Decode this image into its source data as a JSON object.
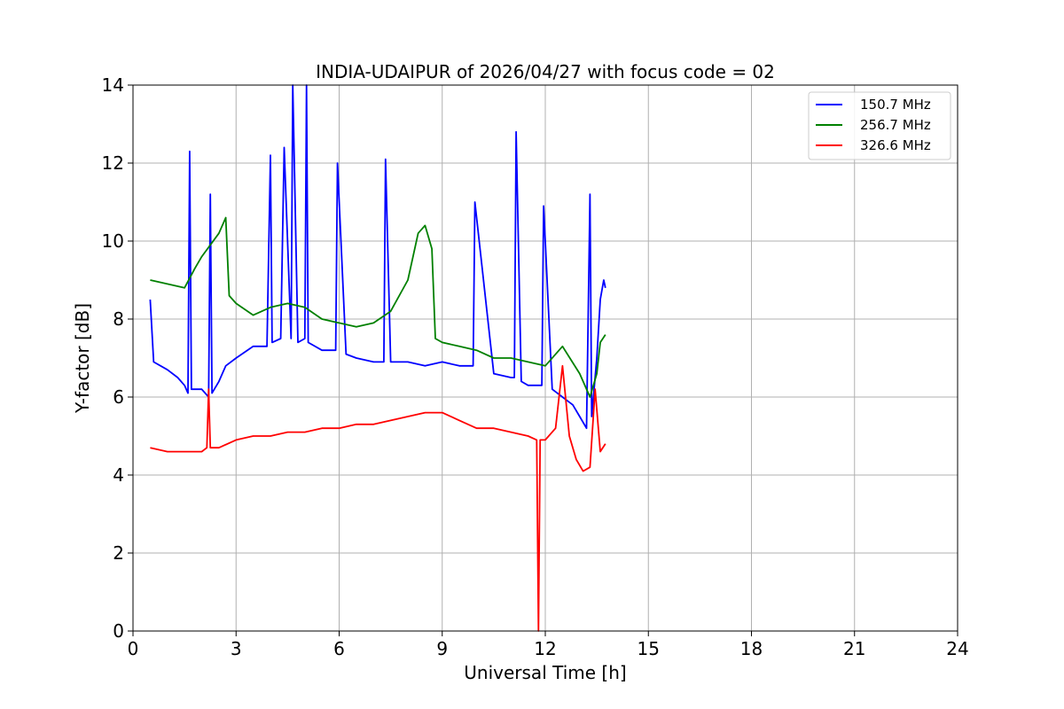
{
  "chart_data": {
    "type": "line",
    "title": "INDIA-UDAIPUR of 2026/04/27 with focus code = 02",
    "xlabel": "Universal Time [h]",
    "ylabel": "Y-factor [dB]",
    "xlim": [
      0,
      24
    ],
    "ylim": [
      0,
      14
    ],
    "xticks": [
      0,
      3,
      6,
      9,
      12,
      15,
      18,
      21,
      24
    ],
    "yticks": [
      0,
      2,
      4,
      6,
      8,
      10,
      12,
      14
    ],
    "grid": true,
    "legend_position": "upper right",
    "series": [
      {
        "name": "150.7 MHz",
        "color": "#0000ff",
        "x": [
          0.5,
          0.6,
          1.0,
          1.3,
          1.5,
          1.6,
          1.65,
          1.7,
          2.0,
          2.2,
          2.25,
          2.3,
          2.5,
          2.7,
          3.0,
          3.5,
          3.9,
          4.0,
          4.05,
          4.3,
          4.4,
          4.6,
          4.65,
          4.8,
          5.0,
          5.05,
          5.1,
          5.5,
          5.9,
          5.95,
          6.2,
          6.5,
          7.0,
          7.3,
          7.35,
          7.5,
          8.0,
          8.5,
          9.0,
          9.5,
          9.9,
          9.95,
          10.5,
          11.0,
          11.1,
          11.15,
          11.3,
          11.5,
          11.9,
          11.95,
          12.2,
          12.5,
          12.8,
          13.0,
          13.2,
          13.3,
          13.35,
          13.5,
          13.6,
          13.7,
          13.75
        ],
        "values": [
          8.5,
          6.9,
          6.7,
          6.5,
          6.3,
          6.1,
          12.3,
          6.2,
          6.2,
          6.0,
          11.2,
          6.1,
          6.4,
          6.8,
          7.0,
          7.3,
          7.3,
          12.2,
          7.4,
          7.5,
          12.4,
          7.5,
          14.0,
          7.4,
          7.5,
          14.0,
          7.4,
          7.2,
          7.2,
          12.0,
          7.1,
          7.0,
          6.9,
          6.9,
          12.1,
          6.9,
          6.9,
          6.8,
          6.9,
          6.8,
          6.8,
          11.0,
          6.6,
          6.5,
          6.5,
          12.8,
          6.4,
          6.3,
          6.3,
          10.9,
          6.2,
          6.0,
          5.8,
          5.5,
          5.2,
          11.2,
          5.5,
          7.0,
          8.5,
          9.0,
          8.8
        ]
      },
      {
        "name": "256.7 MHz",
        "color": "#008000",
        "x": [
          0.5,
          1.0,
          1.5,
          1.8,
          2.0,
          2.5,
          2.7,
          2.8,
          3.0,
          3.5,
          4.0,
          4.5,
          5.0,
          5.5,
          6.0,
          6.5,
          7.0,
          7.5,
          8.0,
          8.3,
          8.5,
          8.7,
          8.8,
          9.0,
          9.5,
          10.0,
          10.5,
          11.0,
          11.5,
          12.0,
          12.5,
          13.0,
          13.3,
          13.5,
          13.6,
          13.75
        ],
        "values": [
          9.0,
          8.9,
          8.8,
          9.3,
          9.6,
          10.2,
          10.6,
          8.6,
          8.4,
          8.1,
          8.3,
          8.4,
          8.3,
          8.0,
          7.9,
          7.8,
          7.9,
          8.2,
          9.0,
          10.2,
          10.4,
          9.8,
          7.5,
          7.4,
          7.3,
          7.2,
          7.0,
          7.0,
          6.9,
          6.8,
          7.3,
          6.6,
          6.0,
          6.6,
          7.4,
          7.6
        ]
      },
      {
        "name": "326.6 MHz",
        "color": "#ff0000",
        "x": [
          0.5,
          1.0,
          1.5,
          2.0,
          2.15,
          2.2,
          2.25,
          2.5,
          3.0,
          3.5,
          4.0,
          4.5,
          5.0,
          5.5,
          6.0,
          6.5,
          7.0,
          7.5,
          8.0,
          8.5,
          9.0,
          9.5,
          10.0,
          10.5,
          11.0,
          11.5,
          11.75,
          11.8,
          11.85,
          12.0,
          12.3,
          12.5,
          12.7,
          12.9,
          13.1,
          13.3,
          13.45,
          13.6,
          13.75
        ],
        "values": [
          4.7,
          4.6,
          4.6,
          4.6,
          4.7,
          6.2,
          4.7,
          4.7,
          4.9,
          5.0,
          5.0,
          5.1,
          5.1,
          5.2,
          5.2,
          5.3,
          5.3,
          5.4,
          5.5,
          5.6,
          5.6,
          5.4,
          5.2,
          5.2,
          5.1,
          5.0,
          4.9,
          0.0,
          4.9,
          4.9,
          5.2,
          6.8,
          5.0,
          4.4,
          4.1,
          4.2,
          6.2,
          4.6,
          4.8
        ]
      }
    ]
  }
}
